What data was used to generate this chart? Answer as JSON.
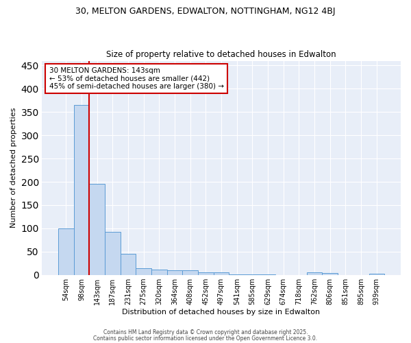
{
  "title_line1": "30, MELTON GARDENS, EDWALTON, NOTTINGHAM, NG12 4BJ",
  "title_line2": "Size of property relative to detached houses in Edwalton",
  "xlabel": "Distribution of detached houses by size in Edwalton",
  "ylabel": "Number of detached properties",
  "categories": [
    "54sqm",
    "98sqm",
    "143sqm",
    "187sqm",
    "231sqm",
    "275sqm",
    "320sqm",
    "364sqm",
    "408sqm",
    "452sqm",
    "497sqm",
    "541sqm",
    "585sqm",
    "629sqm",
    "674sqm",
    "718sqm",
    "762sqm",
    "806sqm",
    "851sqm",
    "895sqm",
    "939sqm"
  ],
  "values": [
    100,
    365,
    195,
    93,
    45,
    15,
    12,
    10,
    10,
    6,
    5,
    1,
    1,
    1,
    0,
    0,
    5,
    4,
    0,
    0,
    3
  ],
  "bar_color": "#c5d8f0",
  "bar_edge_color": "#5b9bd5",
  "red_line_index": 2,
  "annotation_line1": "30 MELTON GARDENS: 143sqm",
  "annotation_line2": "← 53% of detached houses are smaller (442)",
  "annotation_line3": "45% of semi-detached houses are larger (380) →",
  "annotation_box_color": "#ffffff",
  "annotation_box_edge_color": "#cc0000",
  "ylim": [
    0,
    460
  ],
  "yticks": [
    0,
    50,
    100,
    150,
    200,
    250,
    300,
    350,
    400,
    450
  ],
  "background_color": "#e8eef8",
  "grid_color": "#ffffff",
  "footer_line1": "Contains HM Land Registry data © Crown copyright and database right 2025.",
  "footer_line2": "Contains public sector information licensed under the Open Government Licence 3.0."
}
